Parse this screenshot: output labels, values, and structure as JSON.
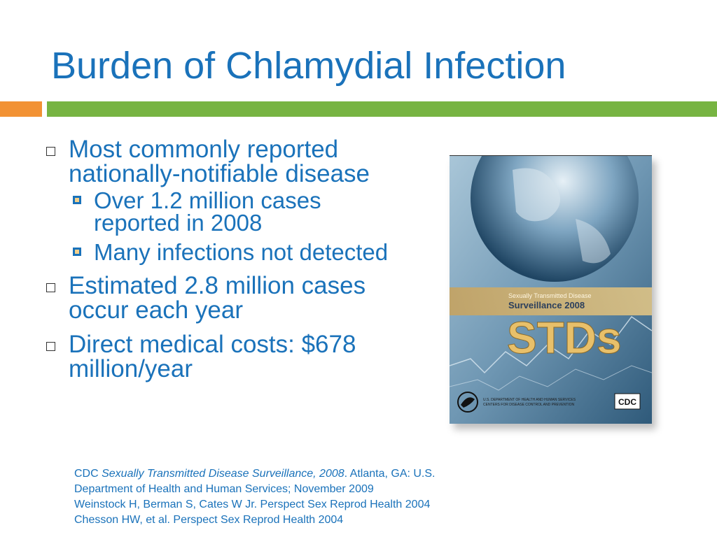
{
  "title": "Burden of Chlamydial Infection",
  "bullets": [
    {
      "text": "Most commonly reported nationally-notifiable disease",
      "sub": [
        "Over 1.2 million cases reported in 2008",
        "Many infections not detected"
      ]
    },
    {
      "text": "Estimated 2.8 million cases occur each year"
    },
    {
      "text": "Direct medical costs: $678 million/year"
    }
  ],
  "cover": {
    "subtitle": "Sexually Transmitted Disease",
    "title": "Surveillance 2008",
    "big_text": "STDs",
    "dept_line1": "U.S. DEPARTMENT OF HEALTH AND HUMAN SERVICES",
    "dept_line2": "CENTERS FOR DISEASE CONTROL AND PREVENTION",
    "logo": "CDC"
  },
  "references": {
    "ref1_prefix": "CDC ",
    "ref1_title": "Sexually Transmitted Disease Surveillance, 2008",
    "ref1_suffix": ". Atlanta, GA: U.S.",
    "ref1_line2": "Department of Health and Human Services; November 2009",
    "ref2": "Weinstock H, Berman S, Cates W Jr. Perspect  Sex Reprod Health 2004",
    "ref3": "Chesson HW, et al. Perspect Sex Reprod Health 2004"
  },
  "colors": {
    "title": "#1a72ba",
    "accent_orange": "#f29234",
    "accent_green": "#77b442"
  }
}
